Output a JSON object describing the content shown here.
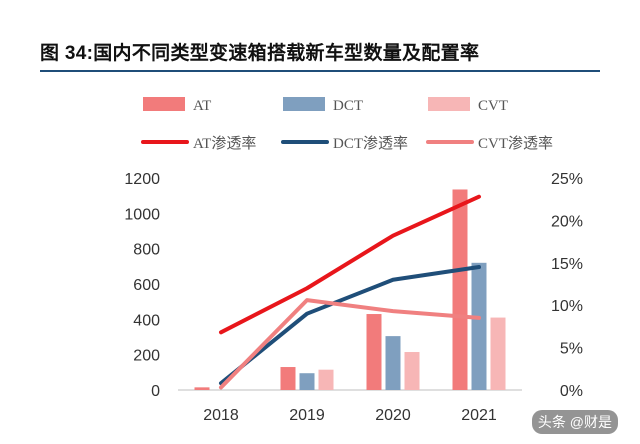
{
  "title": "图 34:国内不同类型变速箱搭载新车型数量及配置率",
  "watermark": "头条 @财是",
  "chart_data": {
    "type": "bar",
    "categories": [
      "2018",
      "2019",
      "2020",
      "2021"
    ],
    "series": [
      {
        "name": "AT",
        "kind": "bar",
        "axis": "left",
        "color": "#f27b7b",
        "values": [
          15,
          130,
          430,
          1135
        ]
      },
      {
        "name": "DCT",
        "kind": "bar",
        "axis": "left",
        "color": "#7f9fbf",
        "values": [
          0,
          95,
          305,
          720
        ]
      },
      {
        "name": "CVT",
        "kind": "bar",
        "axis": "left",
        "color": "#f7b6b6",
        "values": [
          0,
          115,
          215,
          410
        ]
      },
      {
        "name": "AT渗透率",
        "kind": "line",
        "axis": "right",
        "color": "#e8161b",
        "values": [
          6.8,
          12.0,
          18.2,
          22.8
        ]
      },
      {
        "name": "DCT渗透率",
        "kind": "line",
        "axis": "right",
        "color": "#1f4e79",
        "values": [
          0.8,
          9.0,
          13.0,
          14.5
        ]
      },
      {
        "name": "CVT渗透率",
        "kind": "line",
        "axis": "right",
        "color": "#f08080",
        "values": [
          0.3,
          10.6,
          9.3,
          8.5
        ]
      }
    ],
    "y_left": {
      "min": 0,
      "max": 1200,
      "ticks": [
        "0",
        "200",
        "400",
        "600",
        "800",
        "1000",
        "1200"
      ]
    },
    "y_right": {
      "min": 0,
      "max": 25,
      "ticks": [
        "0%",
        "5%",
        "10%",
        "15%",
        "20%",
        "25%"
      ]
    },
    "legend": [
      "AT",
      "DCT",
      "CVT",
      "AT渗透率",
      "DCT渗透率",
      "CVT渗透率"
    ],
    "legend_position": "top",
    "grid": false
  }
}
